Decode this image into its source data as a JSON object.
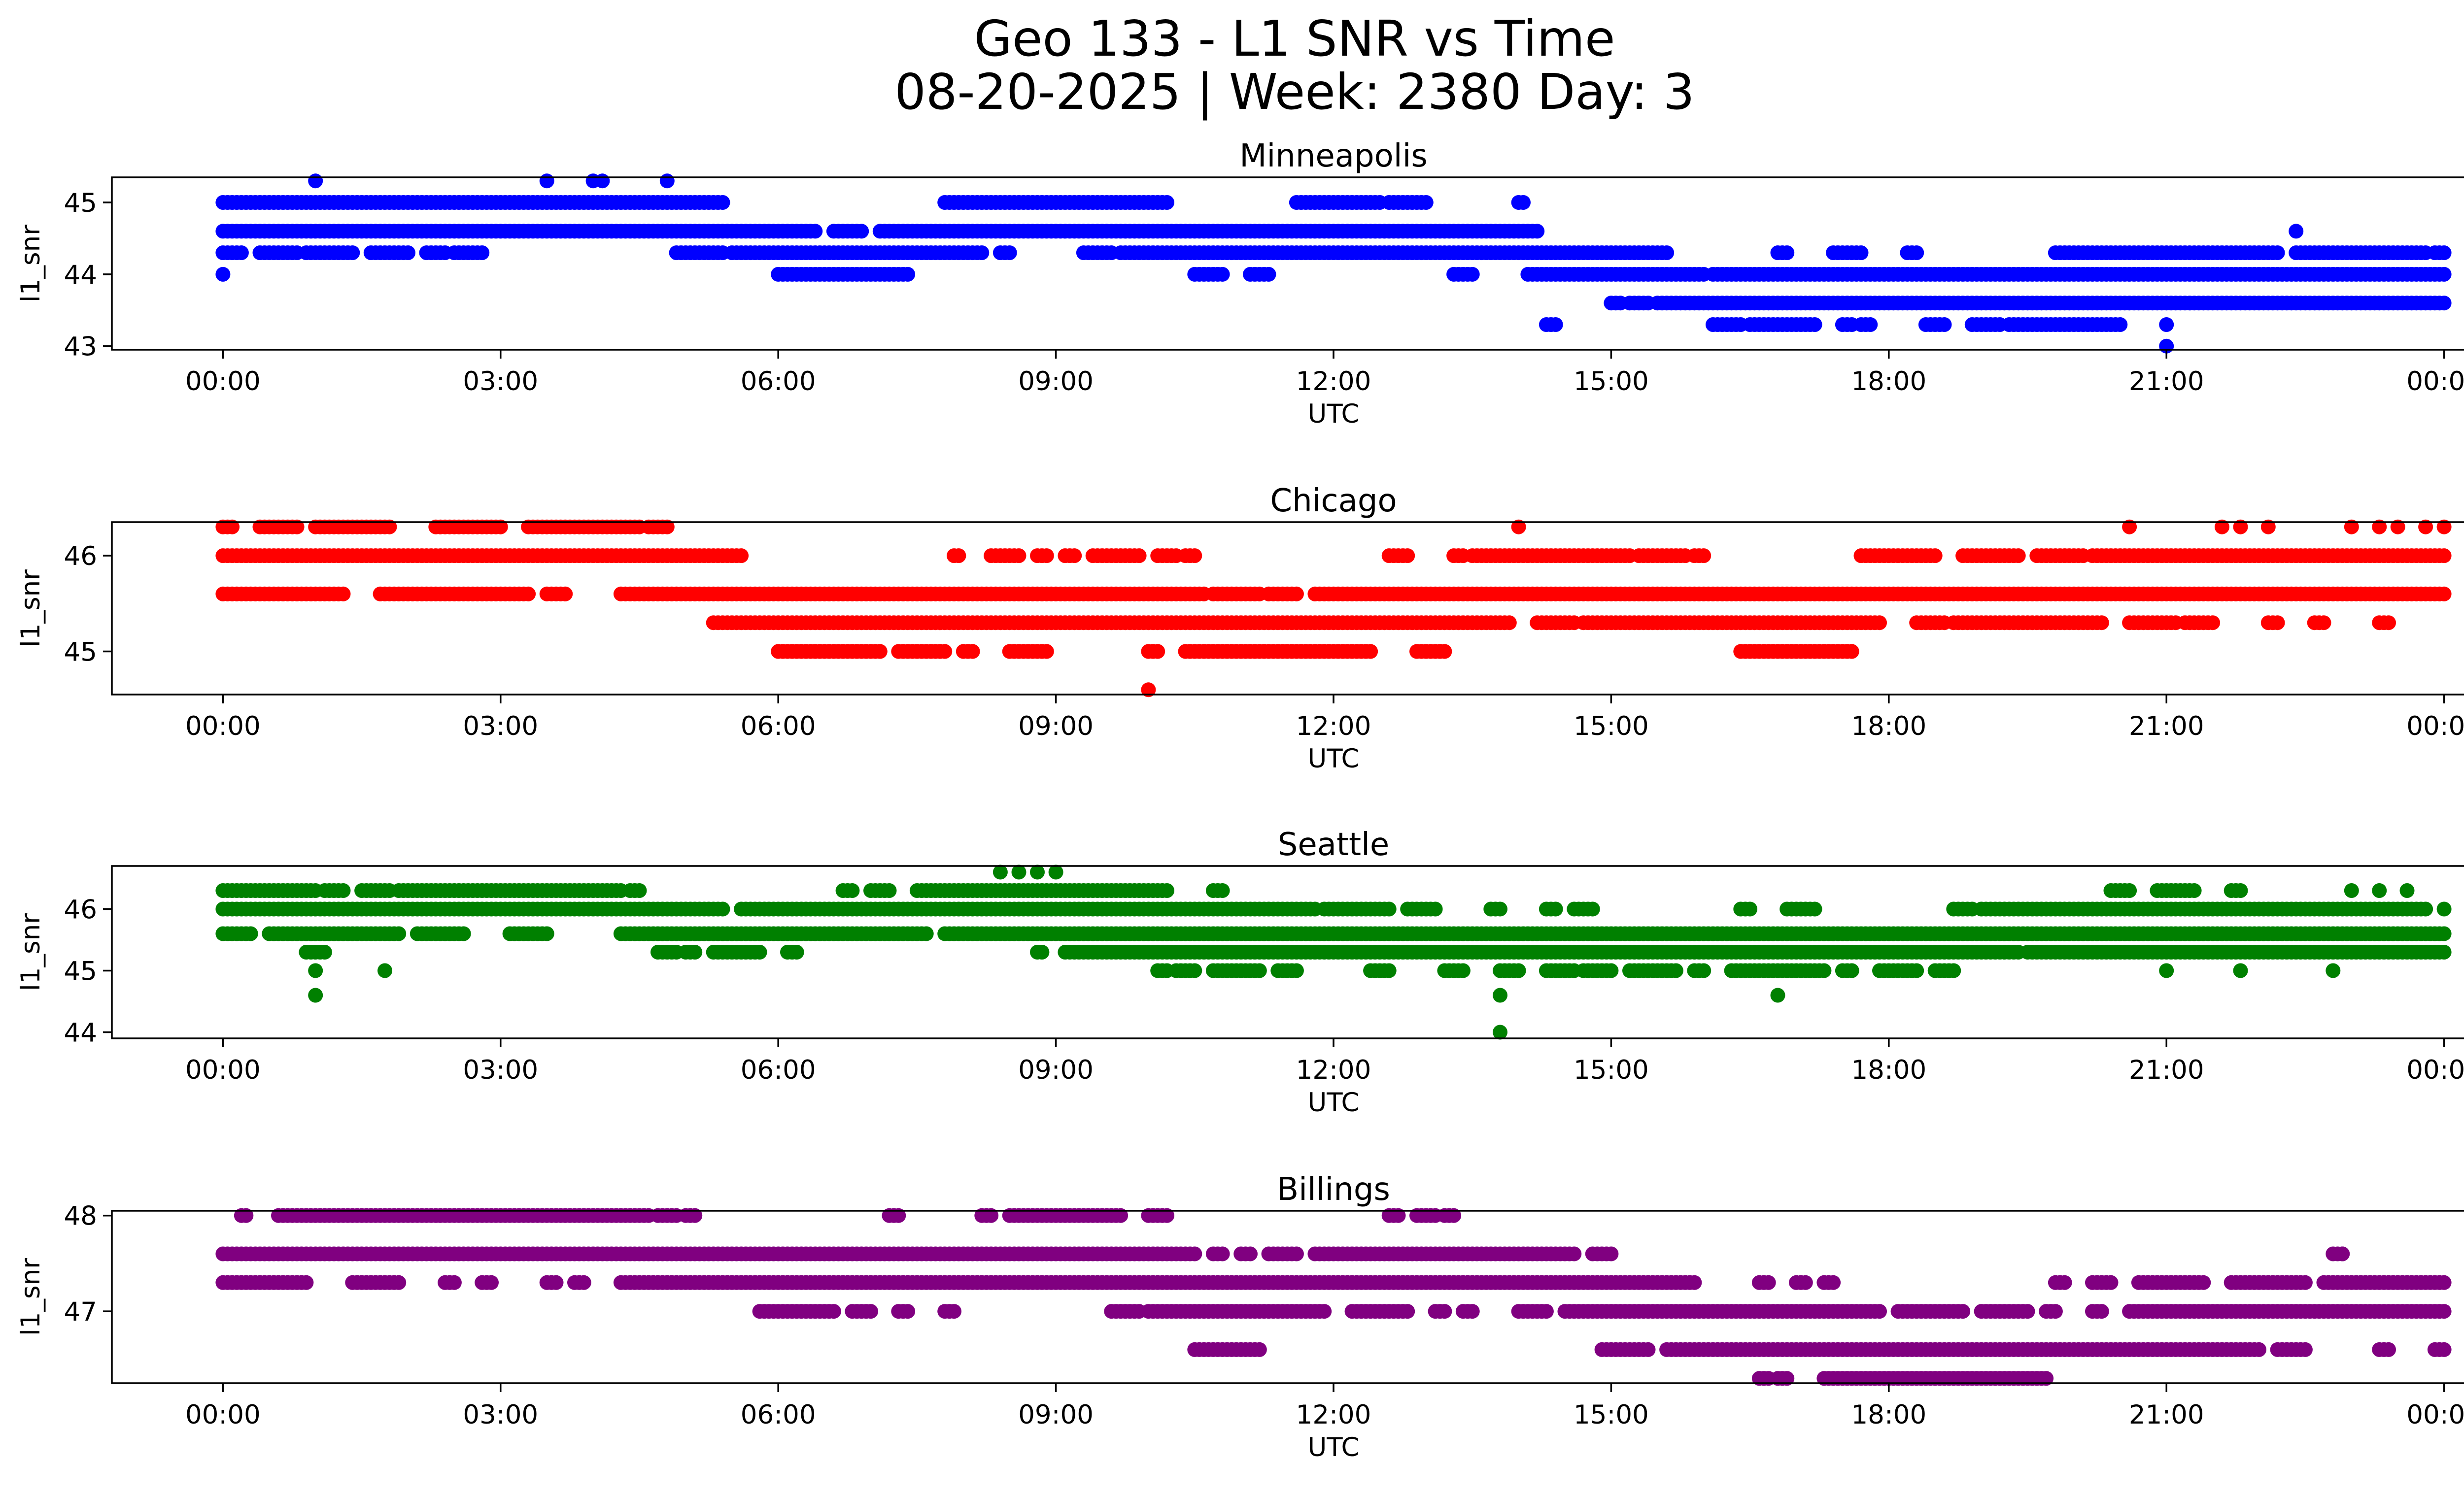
{
  "title_line1": "Geo 133 - L1 SNR vs Time",
  "title_line2": "08-20-2025 | Week: 2380 Day: 3",
  "x_tick_labels": [
    "00:00",
    "03:00",
    "06:00",
    "09:00",
    "12:00",
    "15:00",
    "18:00",
    "21:00",
    "00:00"
  ],
  "chart_data": [
    {
      "type": "scatter",
      "title": "Minneapolis",
      "xlabel": "UTC",
      "ylabel": "l1_snr",
      "color": "#0000ff",
      "xlim_hours": [
        -1.2,
        25.2
      ],
      "ylim": [
        42.95,
        45.35
      ],
      "yticks": [
        43,
        44,
        45
      ],
      "x_ticks_hours": [
        0,
        3,
        6,
        9,
        12,
        15,
        18,
        21,
        24
      ],
      "bands": [
        {
          "y": 45.0,
          "segments": [
            [
              0.0,
              5.4
            ],
            [
              7.8,
              10.2
            ],
            [
              11.6,
              12.5
            ],
            [
              12.6,
              13.0
            ],
            [
              14.0,
              14.05
            ]
          ]
        },
        {
          "y": 44.6,
          "segments": [
            [
              0.0,
              6.4
            ],
            [
              6.6,
              6.9
            ],
            [
              7.1,
              14.2
            ]
          ]
        },
        {
          "y": 44.3,
          "segments": [
            [
              0.0,
              0.2
            ],
            [
              0.4,
              0.8
            ],
            [
              0.9,
              1.4
            ],
            [
              1.6,
              2.0
            ],
            [
              2.2,
              2.4
            ],
            [
              2.5,
              2.8
            ],
            [
              4.9,
              5.4
            ],
            [
              5.5,
              8.2
            ],
            [
              8.4,
              8.5
            ],
            [
              9.3,
              9.6
            ],
            [
              9.7,
              15.6
            ],
            [
              16.8,
              16.9
            ],
            [
              17.4,
              17.7
            ],
            [
              18.2,
              18.3
            ],
            [
              19.8,
              22.2
            ],
            [
              22.4,
              23.8
            ],
            [
              23.9,
              24.0
            ]
          ]
        },
        {
          "y": 44.0,
          "segments": [
            [
              0.0,
              0.0
            ],
            [
              6.0,
              7.4
            ],
            [
              10.5,
              10.8
            ],
            [
              11.1,
              11.3
            ],
            [
              13.3,
              13.5
            ],
            [
              14.1,
              16.0
            ],
            [
              16.1,
              24.0
            ]
          ]
        },
        {
          "y": 43.6,
          "segments": [
            [
              15.0,
              15.1
            ],
            [
              15.2,
              15.4
            ],
            [
              15.5,
              24.0
            ]
          ]
        },
        {
          "y": 43.3,
          "segments": [
            [
              14.3,
              14.4
            ],
            [
              16.1,
              16.4
            ],
            [
              16.5,
              17.2
            ],
            [
              17.5,
              17.6
            ],
            [
              17.7,
              17.8
            ],
            [
              18.4,
              18.6
            ],
            [
              18.9,
              19.2
            ],
            [
              19.3,
              20.5
            ]
          ]
        }
      ],
      "points": [
        [
          1.0,
          45.3
        ],
        [
          3.5,
          45.3
        ],
        [
          4.0,
          45.3
        ],
        [
          4.1,
          45.3
        ],
        [
          4.8,
          45.3
        ],
        [
          22.4,
          44.6
        ],
        [
          21.0,
          43.3
        ],
        [
          21.0,
          43.0
        ]
      ]
    },
    {
      "type": "scatter",
      "title": "Chicago",
      "xlabel": "UTC",
      "ylabel": "l1_snr",
      "color": "#ff0000",
      "xlim_hours": [
        -1.2,
        25.2
      ],
      "ylim": [
        44.55,
        46.35
      ],
      "yticks": [
        45,
        46
      ],
      "x_ticks_hours": [
        0,
        3,
        6,
        9,
        12,
        15,
        18,
        21,
        24
      ],
      "bands": [
        {
          "y": 46.3,
          "segments": [
            [
              0.0,
              0.1
            ],
            [
              0.4,
              0.8
            ],
            [
              1.0,
              1.8
            ],
            [
              2.3,
              3.0
            ],
            [
              3.3,
              4.5
            ],
            [
              4.6,
              4.8
            ]
          ]
        },
        {
          "y": 46.0,
          "segments": [
            [
              0.0,
              5.6
            ],
            [
              7.9,
              7.95
            ],
            [
              8.3,
              8.6
            ],
            [
              8.8,
              8.9
            ],
            [
              9.1,
              9.2
            ],
            [
              9.4,
              9.9
            ],
            [
              10.1,
              10.3
            ],
            [
              10.4,
              10.5
            ],
            [
              12.6,
              12.8
            ],
            [
              13.3,
              13.4
            ],
            [
              13.5,
              15.2
            ],
            [
              15.3,
              15.8
            ],
            [
              15.9,
              16.0
            ],
            [
              17.7,
              18.5
            ],
            [
              18.8,
              19.4
            ],
            [
              19.6,
              20.1
            ],
            [
              20.2,
              24.0
            ]
          ]
        },
        {
          "y": 45.6,
          "segments": [
            [
              0.0,
              1.3
            ],
            [
              1.7,
              3.3
            ],
            [
              3.5,
              3.7
            ],
            [
              4.3,
              10.6
            ],
            [
              10.7,
              11.2
            ],
            [
              11.3,
              11.6
            ],
            [
              11.8,
              24.0
            ]
          ]
        },
        {
          "y": 45.3,
          "segments": [
            [
              5.3,
              13.9
            ],
            [
              14.2,
              14.6
            ],
            [
              14.7,
              17.9
            ],
            [
              18.3,
              18.6
            ],
            [
              18.7,
              20.3
            ],
            [
              20.6,
              21.1
            ],
            [
              21.2,
              21.5
            ],
            [
              22.1,
              22.2
            ],
            [
              22.6,
              22.7
            ],
            [
              23.3,
              23.4
            ]
          ]
        },
        {
          "y": 45.0,
          "segments": [
            [
              6.0,
              7.1
            ],
            [
              7.3,
              7.8
            ],
            [
              8.0,
              8.1
            ],
            [
              8.5,
              8.9
            ],
            [
              10.0,
              10.1
            ],
            [
              10.4,
              12.4
            ],
            [
              12.9,
              13.2
            ],
            [
              16.4,
              17.6
            ]
          ]
        }
      ],
      "points": [
        [
          14.0,
          46.3
        ],
        [
          20.6,
          46.3
        ],
        [
          21.6,
          46.3
        ],
        [
          21.8,
          46.3
        ],
        [
          22.1,
          46.3
        ],
        [
          23.0,
          46.3
        ],
        [
          23.3,
          46.3
        ],
        [
          23.5,
          46.3
        ],
        [
          23.8,
          46.3
        ],
        [
          24.0,
          46.3
        ],
        [
          10.0,
          44.6
        ]
      ]
    },
    {
      "type": "scatter",
      "title": "Seattle",
      "xlabel": "UTC",
      "ylabel": "l1_snr",
      "color": "#008000",
      "xlim_hours": [
        -1.2,
        25.2
      ],
      "ylim": [
        43.9,
        46.7
      ],
      "yticks": [
        44,
        45,
        46
      ],
      "x_ticks_hours": [
        0,
        3,
        6,
        9,
        12,
        15,
        18,
        21,
        24
      ],
      "bands": [
        {
          "y": 46.3,
          "segments": [
            [
              0.0,
              1.0
            ],
            [
              1.1,
              1.3
            ],
            [
              1.5,
              1.8
            ],
            [
              1.9,
              4.3
            ],
            [
              4.4,
              4.5
            ],
            [
              6.7,
              6.8
            ],
            [
              7.0,
              7.2
            ],
            [
              7.5,
              10.2
            ],
            [
              10.7,
              10.8
            ],
            [
              20.4,
              20.6
            ],
            [
              20.9,
              21.3
            ],
            [
              21.7,
              21.8
            ],
            [
              23.0,
              23.0
            ],
            [
              23.3,
              23.3
            ],
            [
              23.6,
              23.6
            ]
          ]
        },
        {
          "y": 46.0,
          "segments": [
            [
              0.0,
              5.4
            ],
            [
              5.6,
              11.8
            ],
            [
              11.9,
              12.6
            ],
            [
              12.8,
              13.1
            ],
            [
              13.7,
              13.8
            ],
            [
              14.3,
              14.4
            ],
            [
              14.6,
              14.8
            ],
            [
              16.4,
              16.5
            ],
            [
              16.9,
              17.2
            ],
            [
              18.7,
              18.9
            ],
            [
              19.0,
              23.8
            ],
            [
              24.0,
              24.0
            ]
          ]
        },
        {
          "y": 45.6,
          "segments": [
            [
              0.0,
              0.3
            ],
            [
              0.5,
              1.9
            ],
            [
              2.1,
              2.6
            ],
            [
              3.1,
              3.5
            ],
            [
              4.3,
              7.6
            ],
            [
              7.8,
              24.0
            ]
          ]
        },
        {
          "y": 45.3,
          "segments": [
            [
              0.9,
              1.1
            ],
            [
              4.7,
              4.9
            ],
            [
              5.0,
              5.1
            ],
            [
              5.3,
              5.8
            ],
            [
              6.1,
              6.2
            ],
            [
              8.8,
              8.85
            ],
            [
              9.1,
              19.4
            ],
            [
              19.5,
              24.0
            ]
          ]
        },
        {
          "y": 45.0,
          "segments": [
            [
              10.1,
              10.2
            ],
            [
              10.3,
              10.5
            ],
            [
              10.7,
              11.2
            ],
            [
              11.4,
              11.6
            ],
            [
              12.4,
              12.6
            ],
            [
              13.2,
              13.4
            ],
            [
              13.8,
              14.0
            ],
            [
              14.3,
              14.6
            ],
            [
              14.7,
              15.0
            ],
            [
              15.2,
              15.7
            ],
            [
              15.9,
              16.0
            ],
            [
              16.3,
              17.3
            ],
            [
              17.5,
              17.6
            ],
            [
              17.9,
              18.3
            ],
            [
              18.5,
              18.7
            ]
          ]
        }
      ],
      "points": [
        [
          8.4,
          46.6
        ],
        [
          8.6,
          46.6
        ],
        [
          8.8,
          46.6
        ],
        [
          9.0,
          46.6
        ],
        [
          1.0,
          45.0
        ],
        [
          1.75,
          45.0
        ],
        [
          1.0,
          44.6
        ],
        [
          21.0,
          45.0
        ],
        [
          21.8,
          45.0
        ],
        [
          22.8,
          45.0
        ],
        [
          13.8,
          44.6
        ],
        [
          16.8,
          44.6
        ],
        [
          13.8,
          44.0
        ]
      ]
    },
    {
      "type": "scatter",
      "title": "Billings",
      "xlabel": "UTC",
      "ylabel": "l1_snr",
      "color": "#800080",
      "xlim_hours": [
        -1.2,
        25.2
      ],
      "ylim": [
        46.25,
        48.05
      ],
      "yticks": [
        47,
        48
      ],
      "x_ticks_hours": [
        0,
        3,
        6,
        9,
        12,
        15,
        18,
        21,
        24
      ],
      "bands": [
        {
          "y": 48.0,
          "segments": [
            [
              0.2,
              0.25
            ],
            [
              0.6,
              4.6
            ],
            [
              4.7,
              4.9
            ],
            [
              5.0,
              5.1
            ],
            [
              7.2,
              7.3
            ],
            [
              8.2,
              8.3
            ],
            [
              8.5,
              9.7
            ],
            [
              10.0,
              10.2
            ],
            [
              12.6,
              12.7
            ],
            [
              12.9,
              13.1
            ],
            [
              13.2,
              13.3
            ]
          ]
        },
        {
          "y": 47.6,
          "segments": [
            [
              0.0,
              10.5
            ],
            [
              10.7,
              10.8
            ],
            [
              11.0,
              11.1
            ],
            [
              11.3,
              11.6
            ],
            [
              11.8,
              14.6
            ],
            [
              14.8,
              15.0
            ],
            [
              22.8,
              22.9
            ]
          ]
        },
        {
          "y": 47.3,
          "segments": [
            [
              0.0,
              0.9
            ],
            [
              1.4,
              1.9
            ],
            [
              2.4,
              2.5
            ],
            [
              2.8,
              2.9
            ],
            [
              3.5,
              3.6
            ],
            [
              3.8,
              3.9
            ],
            [
              4.3,
              15.9
            ],
            [
              16.6,
              16.7
            ],
            [
              17.0,
              17.1
            ],
            [
              17.3,
              17.4
            ],
            [
              19.8,
              19.9
            ],
            [
              20.2,
              20.4
            ],
            [
              20.7,
              21.4
            ],
            [
              21.7,
              22.5
            ],
            [
              22.7,
              24.0
            ]
          ]
        },
        {
          "y": 47.0,
          "segments": [
            [
              5.8,
              6.6
            ],
            [
              6.8,
              7.0
            ],
            [
              7.3,
              7.4
            ],
            [
              7.8,
              7.9
            ],
            [
              9.6,
              9.9
            ],
            [
              10.0,
              11.9
            ],
            [
              12.2,
              12.8
            ],
            [
              13.1,
              13.2
            ],
            [
              13.4,
              13.5
            ],
            [
              14.0,
              14.3
            ],
            [
              14.5,
              17.9
            ],
            [
              18.1,
              18.8
            ],
            [
              19.0,
              19.5
            ],
            [
              19.7,
              19.8
            ],
            [
              20.2,
              20.3
            ],
            [
              20.6,
              24.0
            ]
          ]
        },
        {
          "y": 46.6,
          "segments": [
            [
              10.5,
              11.2
            ],
            [
              14.9,
              15.4
            ],
            [
              15.6,
              22.0
            ],
            [
              22.2,
              22.5
            ],
            [
              23.3,
              23.4
            ],
            [
              23.9,
              24.0
            ]
          ]
        },
        {
          "y": 46.3,
          "segments": [
            [
              16.6,
              16.7
            ],
            [
              16.8,
              16.9
            ],
            [
              17.3,
              19.7
            ]
          ]
        }
      ],
      "points": [
        [
          22.9,
          47.6
        ]
      ]
    }
  ]
}
